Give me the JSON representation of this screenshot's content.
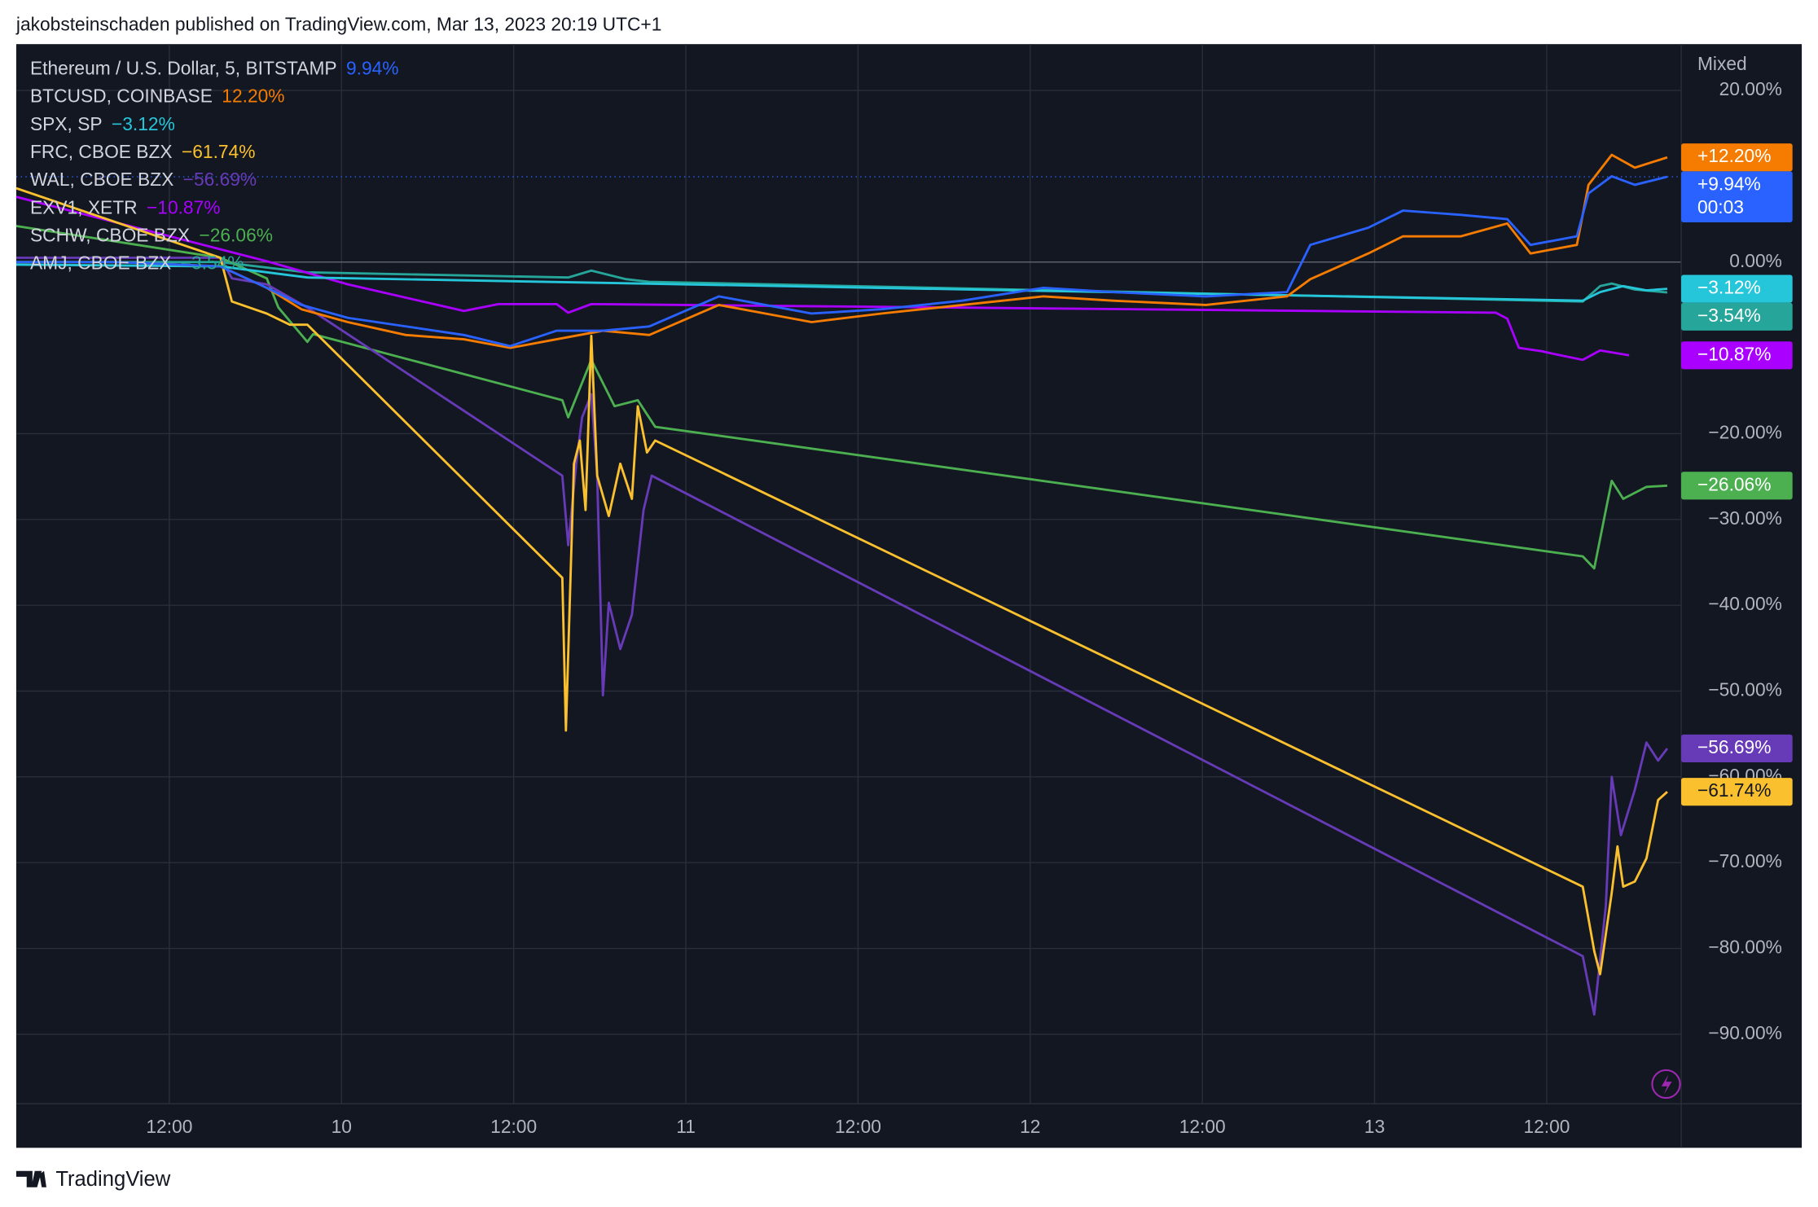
{
  "header": "jakobsteinschaden published on TradingView.com, Mar 13, 2023 20:19 UTC+1",
  "footer": "TradingView",
  "chart_data": {
    "type": "line",
    "scale_label": "Mixed",
    "countdown": "00:03",
    "xlim": [
      1.33,
      117.37
    ],
    "xticks": [
      {
        "value": 12,
        "label": "12:00"
      },
      {
        "value": 24,
        "label": "10"
      },
      {
        "value": 36,
        "label": "12:00"
      },
      {
        "value": 48,
        "label": "11"
      },
      {
        "value": 60,
        "label": "12:00"
      },
      {
        "value": 72,
        "label": "12"
      },
      {
        "value": 84,
        "label": "12:00"
      },
      {
        "value": 96,
        "label": "13"
      },
      {
        "value": 108,
        "label": "12:00"
      }
    ],
    "ylim": [
      -98.1,
      25.4
    ],
    "yticks": [
      {
        "value": 20,
        "label": "20.00%"
      },
      {
        "value": 0,
        "label": "0.00%"
      },
      {
        "value": -20,
        "label": "−20.00%"
      },
      {
        "value": -30,
        "label": "−30.00%"
      },
      {
        "value": -40,
        "label": "−40.00%"
      },
      {
        "value": -50,
        "label": "−50.00%"
      },
      {
        "value": -60,
        "label": "−60.00%"
      },
      {
        "value": -70,
        "label": "−70.00%"
      },
      {
        "value": -80,
        "label": "−80.00%"
      },
      {
        "value": -90,
        "label": "−90.00%"
      }
    ],
    "grid": true,
    "series": [
      {
        "name": "Ethereum / U.S. Dollar, 5, BITSTAMP",
        "legend_value": "9.94%",
        "price_label": "+9.94%",
        "color": "#2962ff",
        "x": [
          1.33,
          8.28,
          15.56,
          18.79,
          21.21,
          24.44,
          28.48,
          32.53,
          35.76,
          38.99,
          42.22,
          45.45,
          50.3,
          53.54,
          56.77,
          61.62,
          67.27,
          72.93,
          77.78,
          84.24,
          89.9,
          91.52,
          95.56,
          97.98,
          102.02,
          105.25,
          106.87,
          110.1,
          110.91,
          112.53,
          114.14,
          116.4
        ],
        "values": [
          0,
          0,
          -0.5,
          -3,
          -5,
          -6.5,
          -7.5,
          -8.5,
          -9.8,
          -8,
          -8,
          -7.5,
          -4,
          -5,
          -6,
          -5.5,
          -4.5,
          -3,
          -3.5,
          -4,
          -3.5,
          2,
          4,
          6,
          5.5,
          5,
          2,
          3,
          8,
          10,
          9,
          9.94
        ]
      },
      {
        "name": "BTCUSD, COINBASE",
        "legend_value": "12.20%",
        "price_label": "+12.20%",
        "color": "#f57c00",
        "x": [
          1.33,
          8.28,
          15.56,
          18.79,
          21.21,
          24.44,
          28.48,
          32.53,
          35.76,
          38.99,
          42.22,
          45.45,
          50.3,
          53.54,
          56.77,
          61.62,
          67.27,
          72.93,
          77.78,
          84.24,
          89.9,
          91.52,
          95.56,
          97.98,
          102.02,
          105.25,
          106.87,
          110.1,
          110.91,
          112.53,
          114.14,
          116.4
        ],
        "values": [
          0,
          0,
          -0.5,
          -3,
          -5.5,
          -7,
          -8.5,
          -9,
          -10,
          -9,
          -8,
          -8.5,
          -5,
          -6,
          -7,
          -6,
          -5,
          -4,
          -4.5,
          -5,
          -4,
          -2,
          1,
          3,
          3,
          4.5,
          1,
          2,
          9,
          12.5,
          11,
          12.2
        ]
      },
      {
        "name": "SPX, SP",
        "legend_value": "−3.12%",
        "price_label": "−3.12%",
        "color": "#26c6da",
        "x": [
          1.33,
          15.56,
          21.62,
          110.51,
          111.72,
          113.33,
          114.95,
          116.4
        ],
        "values": [
          -0.3,
          -0.5,
          -1.8,
          -4.5,
          -3.5,
          -2.8,
          -3.3,
          -3.12
        ]
      },
      {
        "name": "FRC, CBOE BZX",
        "legend_value": "−61.74%",
        "price_label": "−61.74%",
        "color": "#fbc02d",
        "x": [
          1.33,
          15.56,
          16.36,
          18.79,
          20.4,
          21.62,
          39.39,
          39.64,
          40.2,
          40.61,
          41.01,
          41.41,
          41.82,
          42.63,
          43.43,
          44.24,
          44.65,
          45.29,
          45.86,
          110.51,
          111.31,
          111.72,
          112.53,
          112.93,
          113.33,
          114.14,
          114.95,
          115.76,
          116.4
        ],
        "values": [
          8.6,
          0.5,
          -4.6,
          -6,
          -7.3,
          -7.3,
          -36.8,
          -54.6,
          -23.5,
          -20.8,
          -28.9,
          -8.6,
          -24.9,
          -29.6,
          -23.5,
          -27.6,
          -16.8,
          -22.2,
          -20.8,
          -72.8,
          -80.3,
          -83,
          -73.5,
          -68.1,
          -72.8,
          -72.2,
          -69.5,
          -62.7,
          -61.74
        ]
      },
      {
        "name": "WAL, CBOE BZX",
        "legend_value": "−56.69%",
        "price_label": "−56.69%",
        "color": "#673ab7",
        "x": [
          1.33,
          15.56,
          16.36,
          18.79,
          21.62,
          39.39,
          39.8,
          40.36,
          40.77,
          41.41,
          41.82,
          42.22,
          42.63,
          43.43,
          44.24,
          45.05,
          45.62,
          110.51,
          111.31,
          112.12,
          112.53,
          113.17,
          114.14,
          114.95,
          115.76,
          116.4
        ],
        "values": [
          0.5,
          0.5,
          -1.9,
          -2.6,
          -5.3,
          -24.9,
          -33,
          -23.5,
          -18.1,
          -15.4,
          -24.9,
          -50.5,
          -39.7,
          -45.1,
          -41.1,
          -28.9,
          -24.9,
          -80.9,
          -87.7,
          -75,
          -60,
          -66.8,
          -61.5,
          -56,
          -58.1,
          -56.69
        ]
      },
      {
        "name": "EXV1, XETR",
        "legend_value": "−10.87%",
        "price_label": "−10.87%",
        "color": "#aa00ff",
        "x": [
          1.33,
          18.79,
          24.44,
          32.53,
          34.95,
          38.99,
          39.8,
          41.41,
          104.44,
          105.25,
          106.06,
          107.68,
          108.48,
          110.51,
          111.72,
          113.74
        ],
        "values": [
          7.6,
          0.1,
          -2.6,
          -5.7,
          -4.9,
          -4.9,
          -5.9,
          -4.9,
          -5.9,
          -6.6,
          -10,
          -10.4,
          -10.7,
          -11.4,
          -10.3,
          -10.87
        ]
      },
      {
        "name": "SCHW, CBOE BZX",
        "legend_value": "−26.06%",
        "price_label": "−26.06%",
        "color": "#4caf50",
        "x": [
          1.33,
          15.56,
          18.79,
          19.6,
          21.62,
          22.02,
          39.39,
          39.8,
          41.41,
          43.03,
          44.65,
          45.86,
          110.51,
          111.31,
          112.12,
          112.53,
          113.33,
          114.95,
          116.4
        ],
        "values": [
          4.2,
          0.5,
          -1.9,
          -5.3,
          -9.3,
          -8.4,
          -16.1,
          -18.1,
          -11.4,
          -16.8,
          -16.1,
          -19.2,
          -34.3,
          -35.7,
          -28.9,
          -25.5,
          -27.6,
          -26.2,
          -26.06
        ]
      },
      {
        "name": "AMJ, CBOE BZX",
        "legend_value": "−3.54%",
        "price_label": "−3.54%",
        "color": "#26a69a",
        "x": [
          1.33,
          15.56,
          21.62,
          39.8,
          41.41,
          43.84,
          45.45,
          110.51,
          111.72,
          112.53,
          114.14,
          116.4
        ],
        "values": [
          0,
          0,
          -1.2,
          -1.8,
          -1,
          -2,
          -2.3,
          -4.6,
          -2.8,
          -2.5,
          -3.2,
          -3.54
        ]
      }
    ]
  }
}
